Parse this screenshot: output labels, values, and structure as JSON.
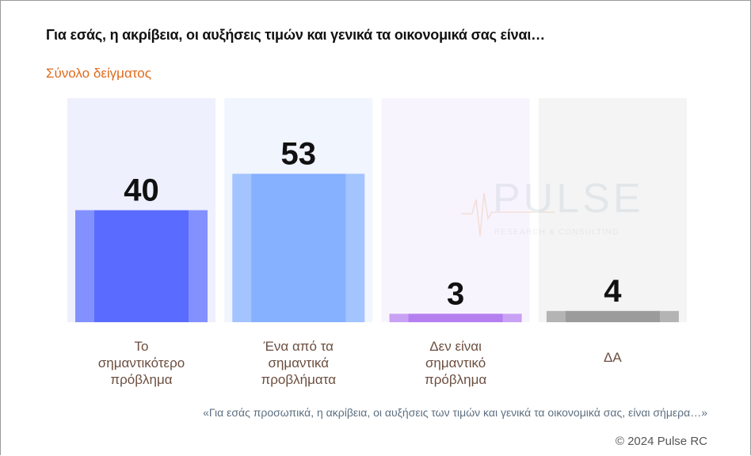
{
  "header": {
    "title": "Για εσάς, η ακρίβεια, οι αυξήσεις τιμών και γενικά τα οικονομικά σας είναι…",
    "subtitle": "Σύνολο δείγματος"
  },
  "watermark": {
    "brand": "PULSE",
    "tagline": "RESEARCH & CONSULTING"
  },
  "footer": {
    "question": "«Για εσάς προσωπικά, η ακρίβεια, οι αυξήσεις των τιμών και γενικά τα οικονομικά σας, είναι σήμερα…»",
    "copyright": "© 2024 Pulse RC"
  },
  "chart_data": {
    "type": "bar",
    "categories": [
      [
        "Το",
        "σημαντικότερο",
        "πρόβλημα"
      ],
      [
        "Ένα από τα",
        "σημαντικά",
        "προβλήματα"
      ],
      [
        "Δεν είναι",
        "σημαντικό",
        "πρόβλημα"
      ],
      [
        "ΔΑ"
      ]
    ],
    "values": [
      40,
      53,
      3,
      4
    ],
    "colors": [
      "#5a6cff",
      "#85b1ff",
      "#b57ff0",
      "#9b9b9b"
    ],
    "background_colors": [
      "#eef0fd",
      "#f1f5fd",
      "#f8f4fd",
      "#f4f4f4"
    ],
    "ylim": [
      0,
      80
    ],
    "grid": false,
    "legend": "none"
  }
}
